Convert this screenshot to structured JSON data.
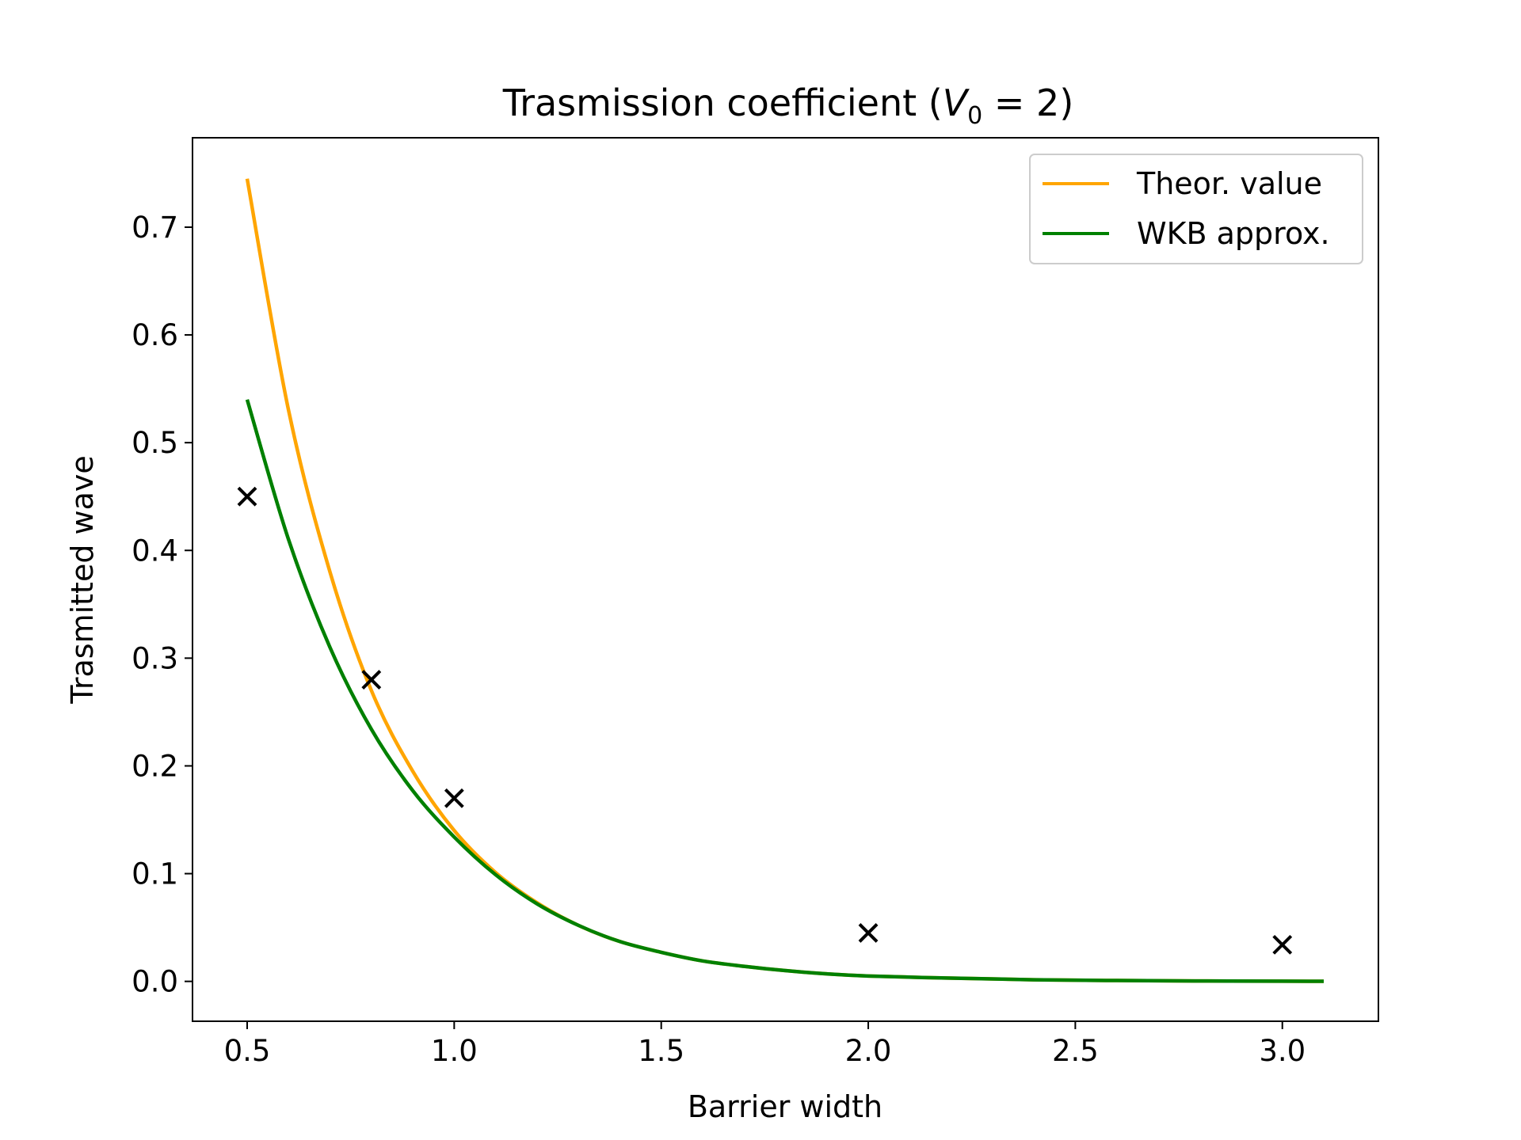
{
  "chart_data": {
    "type": "line",
    "title_main": "Trasmission coefficient (",
    "title_var": "V",
    "title_sub": "0",
    "title_rest": " = 2)",
    "xlabel": "Barrier width",
    "ylabel": "Trasmitted wave",
    "xlim": [
      0.368,
      3.232
    ],
    "ylim": [
      -0.037,
      0.783
    ],
    "xticks": [
      0.5,
      1.0,
      1.5,
      2.0,
      2.5,
      3.0
    ],
    "xtick_labels": [
      "0.5",
      "1.0",
      "1.5",
      "2.0",
      "2.5",
      "3.0"
    ],
    "yticks": [
      0.0,
      0.1,
      0.2,
      0.3,
      0.4,
      0.5,
      0.6,
      0.7
    ],
    "ytick_labels": [
      "0.0",
      "0.1",
      "0.2",
      "0.3",
      "0.4",
      "0.5",
      "0.6",
      "0.7"
    ],
    "grid": false,
    "legend_position": "top-right",
    "series": [
      {
        "name": "Theor. value",
        "color": "#FFA500",
        "x": [
          0.5,
          0.6,
          0.7,
          0.8,
          0.9,
          1.0,
          1.1,
          1.2,
          1.3,
          1.4,
          1.5,
          1.6,
          1.7,
          1.8,
          1.9,
          2.0,
          2.2,
          2.4,
          2.6,
          2.8,
          3.0,
          3.1
        ],
        "y": [
          0.745,
          0.53,
          0.38,
          0.27,
          0.195,
          0.14,
          0.101,
          0.073,
          0.052,
          0.037,
          0.027,
          0.019,
          0.014,
          0.01,
          0.007,
          0.005,
          0.003,
          0.0015,
          0.0008,
          0.0004,
          0.0002,
          0.0001
        ]
      },
      {
        "name": "WKB approx.",
        "color": "#008000",
        "x": [
          0.5,
          0.6,
          0.7,
          0.8,
          0.9,
          1.0,
          1.1,
          1.2,
          1.3,
          1.4,
          1.5,
          1.6,
          1.7,
          1.8,
          1.9,
          2.0,
          2.2,
          2.4,
          2.6,
          2.8,
          3.0,
          3.1
        ],
        "y": [
          0.54,
          0.41,
          0.31,
          0.234,
          0.177,
          0.134,
          0.099,
          0.072,
          0.052,
          0.037,
          0.027,
          0.019,
          0.014,
          0.01,
          0.007,
          0.005,
          0.003,
          0.0015,
          0.0008,
          0.0004,
          0.0002,
          0.0001
        ]
      },
      {
        "name": "",
        "marker": "x",
        "color": "#000000",
        "x": [
          0.5,
          0.8,
          1.0,
          2.0,
          3.0
        ],
        "y": [
          0.45,
          0.28,
          0.17,
          0.045,
          0.034
        ]
      }
    ]
  }
}
